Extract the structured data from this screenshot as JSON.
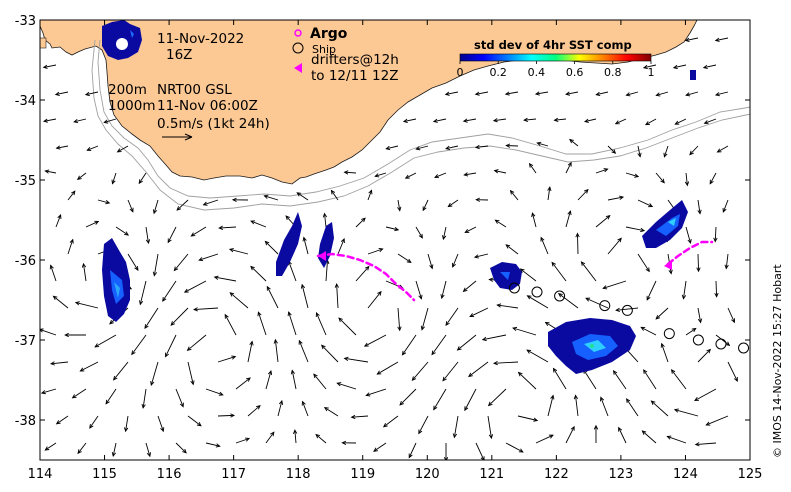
{
  "map": {
    "date_label": "11-Nov-2022",
    "hour_label": "16Z",
    "contour_label_1": "200m",
    "contour_label_2": "1000m",
    "product_label": "NRT00 GSL",
    "product_time": "11-Nov 06:00Z",
    "scale_label": "0.5m/s (1kt 24h)",
    "credit": "© IMOS 14-Nov-2022 15:27 Hobart",
    "colors": {
      "land": "#fcc894",
      "arrow": "#000000",
      "drifter": "#ff00ff",
      "contour": "#a0a0a0",
      "sst_low": "#000080"
    }
  },
  "legend": {
    "argo_label": "Argo",
    "ship_label": "Ship",
    "drifters_label": "drifters@12h",
    "drifters_period": "to 12/11 12Z"
  },
  "colorbar": {
    "title": "std dev of 4hr SST comp",
    "ticks": [
      "0",
      "0.2",
      "0.4",
      "0.6",
      "0.8",
      "1"
    ]
  },
  "axes": {
    "x_ticks": [
      "114",
      "115",
      "116",
      "117",
      "118",
      "119",
      "120",
      "121",
      "122",
      "123",
      "124",
      "125"
    ],
    "y_ticks": [
      "-33",
      "-34",
      "-35",
      "-36",
      "-37",
      "-38"
    ],
    "x_range": [
      114,
      125
    ],
    "y_range": [
      -38.5,
      -33
    ]
  },
  "ship_positions": [
    [
      121.35,
      -36.35
    ],
    [
      121.7,
      -36.4
    ],
    [
      122.05,
      -36.45
    ],
    [
      122.75,
      -36.57
    ],
    [
      123.1,
      -36.63
    ],
    [
      123.75,
      -36.92
    ],
    [
      124.2,
      -37.0
    ],
    [
      124.55,
      -37.05
    ],
    [
      124.9,
      -37.1
    ]
  ]
}
